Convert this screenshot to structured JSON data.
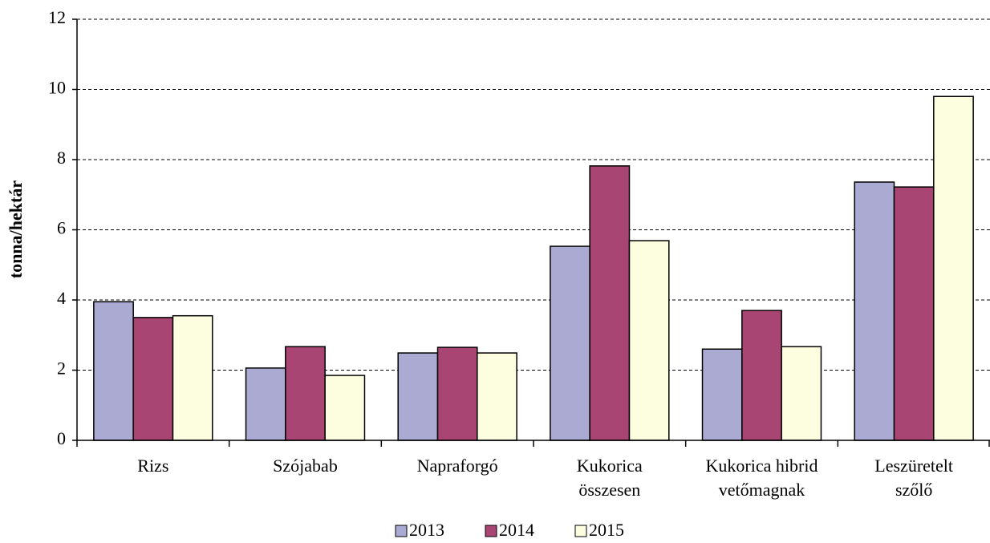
{
  "chart_data": {
    "type": "bar",
    "y_label": "tonna/hektár",
    "categories": [
      [
        "Rizs"
      ],
      [
        "Szójabab"
      ],
      [
        "Napraforgó"
      ],
      [
        "Kukorica",
        "összesen"
      ],
      [
        "Kukorica hibrid",
        "vetőmagnak"
      ],
      [
        "Leszüretelt",
        "szőlő"
      ]
    ],
    "series": [
      {
        "name": "2013",
        "color": "#aaaad2",
        "values": [
          3.95,
          2.06,
          2.49,
          5.53,
          2.6,
          7.36
        ]
      },
      {
        "name": "2014",
        "color": "#a94573",
        "values": [
          3.5,
          2.67,
          2.65,
          7.82,
          3.7,
          7.22
        ]
      },
      {
        "name": "2015",
        "color": "#fdfde0",
        "values": [
          3.55,
          1.85,
          2.49,
          5.69,
          2.67,
          9.8
        ]
      }
    ],
    "ylim": [
      0,
      12
    ],
    "yticks": [
      0,
      2,
      4,
      6,
      8,
      10,
      12
    ],
    "grid": true,
    "legend": "bottom"
  }
}
